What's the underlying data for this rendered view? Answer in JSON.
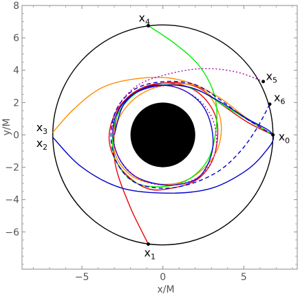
{
  "chart_data": {
    "type": "line",
    "xlabel": "x/M",
    "ylabel": "y/M",
    "xlim": [
      -8.7,
      8.3
    ],
    "ylim": [
      -8.3,
      8.0
    ],
    "xticks": [
      -5,
      0,
      5
    ],
    "yticks": [
      -6,
      -4,
      -2,
      0,
      2,
      4,
      6,
      8
    ],
    "xtick_labels": [
      "−5",
      "0",
      "5"
    ],
    "ytick_labels": [
      "−6",
      "−4",
      "−2",
      "0",
      "2",
      "4",
      "6",
      "8"
    ],
    "black_hole_radius": 2.0,
    "shadow_ring_radius": 3.0,
    "observer_circle_radius": 6.8,
    "points": [
      {
        "main": "x",
        "sub": "0",
        "x": 6.8,
        "y": 0.0
      },
      {
        "main": "x",
        "sub": "1",
        "x": -0.9,
        "y": -6.75
      },
      {
        "main": "x",
        "sub": "2",
        "x": -6.8,
        "y": -0.15
      },
      {
        "main": "x",
        "sub": "3",
        "x": -6.8,
        "y": 0.15
      },
      {
        "main": "x",
        "sub": "4",
        "x": -0.9,
        "y": 6.75
      },
      {
        "main": "x",
        "sub": "5",
        "x": 6.2,
        "y": 3.3
      },
      {
        "main": "x",
        "sub": "6",
        "x": 6.6,
        "y": 1.9
      }
    ],
    "series": [
      {
        "color": "#ee0000",
        "dash": "",
        "points": [
          [
            -0.9,
            -6.75
          ],
          [
            -2.0,
            -4.5
          ],
          [
            -2.9,
            -2.0
          ],
          [
            -3.0,
            0.0
          ],
          [
            -2.6,
            1.8
          ],
          [
            -1.3,
            2.9
          ],
          [
            0.5,
            3.2
          ],
          [
            2.2,
            2.6
          ],
          [
            3.3,
            1.0
          ],
          [
            3.2,
            -1.2
          ],
          [
            2.2,
            -2.7
          ],
          [
            0.5,
            -3.3
          ],
          [
            -1.0,
            -3.3
          ],
          [
            -2.5,
            -2.2
          ],
          [
            -3.3,
            -0.5
          ],
          [
            -3.0,
            1.2
          ],
          [
            -1.9,
            2.5
          ],
          [
            0.0,
            3.2
          ],
          [
            2.0,
            3.0
          ],
          [
            3.6,
            1.9
          ],
          [
            5.2,
            0.8
          ],
          [
            6.8,
            0.0
          ]
        ]
      },
      {
        "color": "#ff8c00",
        "dash": "",
        "points": [
          [
            -6.8,
            0.15
          ],
          [
            -5.5,
            1.6
          ],
          [
            -3.8,
            2.9
          ],
          [
            -1.8,
            3.45
          ],
          [
            0.5,
            3.5
          ],
          [
            2.5,
            2.8
          ],
          [
            3.5,
            1.2
          ],
          [
            3.5,
            -0.5
          ],
          [
            2.7,
            -1.9
          ],
          [
            1.2,
            -2.9
          ],
          [
            -0.6,
            -3.0
          ],
          [
            -2.1,
            -2.4
          ],
          [
            -3.0,
            -1.0
          ],
          [
            -2.8,
            0.8
          ],
          [
            -1.8,
            2.2
          ],
          [
            -0.2,
            3.0
          ],
          [
            1.8,
            3.1
          ],
          [
            3.5,
            2.3
          ],
          [
            5.1,
            1.1
          ],
          [
            6.8,
            0.0
          ]
        ]
      },
      {
        "color": "#00ee00",
        "dash": "",
        "points": [
          [
            -0.9,
            6.75
          ],
          [
            0.8,
            5.6
          ],
          [
            2.3,
            4.2
          ],
          [
            3.2,
            2.4
          ],
          [
            3.3,
            0.5
          ],
          [
            2.8,
            -1.5
          ],
          [
            1.5,
            -2.8
          ],
          [
            -0.2,
            -3.2
          ],
          [
            -1.8,
            -2.9
          ],
          [
            -2.9,
            -1.6
          ],
          [
            -3.1,
            0.0
          ],
          [
            -2.6,
            1.6
          ],
          [
            -1.3,
            2.8
          ],
          [
            0.5,
            3.1
          ],
          [
            2.3,
            2.7
          ],
          [
            3.8,
            1.8
          ],
          [
            5.3,
            0.9
          ],
          [
            6.8,
            0.0
          ]
        ]
      },
      {
        "color": "#0000cc",
        "dash": "",
        "points": [
          [
            -6.8,
            -0.15
          ],
          [
            -5.0,
            -2.0
          ],
          [
            -2.5,
            -3.3
          ],
          [
            0.5,
            -3.6
          ],
          [
            3.0,
            -3.3
          ],
          [
            5.0,
            -2.3
          ],
          [
            6.2,
            -1.2
          ],
          [
            6.8,
            0.0
          ],
          [
            5.2,
            1.0
          ],
          [
            3.6,
            2.0
          ],
          [
            1.8,
            2.9
          ],
          [
            -0.2,
            3.05
          ],
          [
            -2.0,
            2.4
          ],
          [
            -3.0,
            0.9
          ],
          [
            -2.9,
            -1.0
          ],
          [
            -1.8,
            -2.5
          ],
          [
            0.2,
            -3.1
          ],
          [
            2.1,
            -2.7
          ],
          [
            3.0,
            -1.2
          ],
          [
            3.0,
            0.5
          ],
          [
            2.3,
            2.0
          ],
          [
            0.8,
            2.95
          ],
          [
            -1.0,
            2.95
          ],
          [
            -2.4,
            1.9
          ],
          [
            -3.0,
            0.0
          ]
        ]
      },
      {
        "color": "#0000cc",
        "dash": "6,4",
        "points": [
          [
            6.6,
            1.9
          ],
          [
            5.8,
            0.4
          ],
          [
            4.8,
            -1.0
          ],
          [
            3.5,
            -2.2
          ],
          [
            1.8,
            -3.0
          ],
          [
            0.0,
            -3.3
          ],
          [
            -1.8,
            -2.9
          ],
          [
            -2.9,
            -1.6
          ],
          [
            -3.2,
            0.1
          ],
          [
            -2.8,
            1.7
          ],
          [
            -1.6,
            2.9
          ],
          [
            0.2,
            3.3
          ],
          [
            2.0,
            3.1
          ],
          [
            3.5,
            2.2
          ],
          [
            5.0,
            1.1
          ],
          [
            6.8,
            0.0
          ]
        ]
      },
      {
        "color": "#aa00aa",
        "dash": "2,3",
        "points": [
          [
            6.2,
            3.3
          ],
          [
            4.5,
            3.9
          ],
          [
            2.5,
            4.1
          ],
          [
            0.5,
            3.8
          ],
          [
            -1.5,
            3.1
          ],
          [
            -2.8,
            1.7
          ],
          [
            -3.1,
            0.0
          ],
          [
            -2.6,
            -1.6
          ],
          [
            -1.3,
            -2.8
          ],
          [
            0.5,
            -3.1
          ],
          [
            2.2,
            -2.6
          ],
          [
            3.2,
            -1.2
          ],
          [
            3.2,
            0.6
          ],
          [
            2.3,
            2.1
          ],
          [
            0.6,
            3.0
          ],
          [
            -1.0,
            2.9
          ]
        ]
      }
    ]
  }
}
